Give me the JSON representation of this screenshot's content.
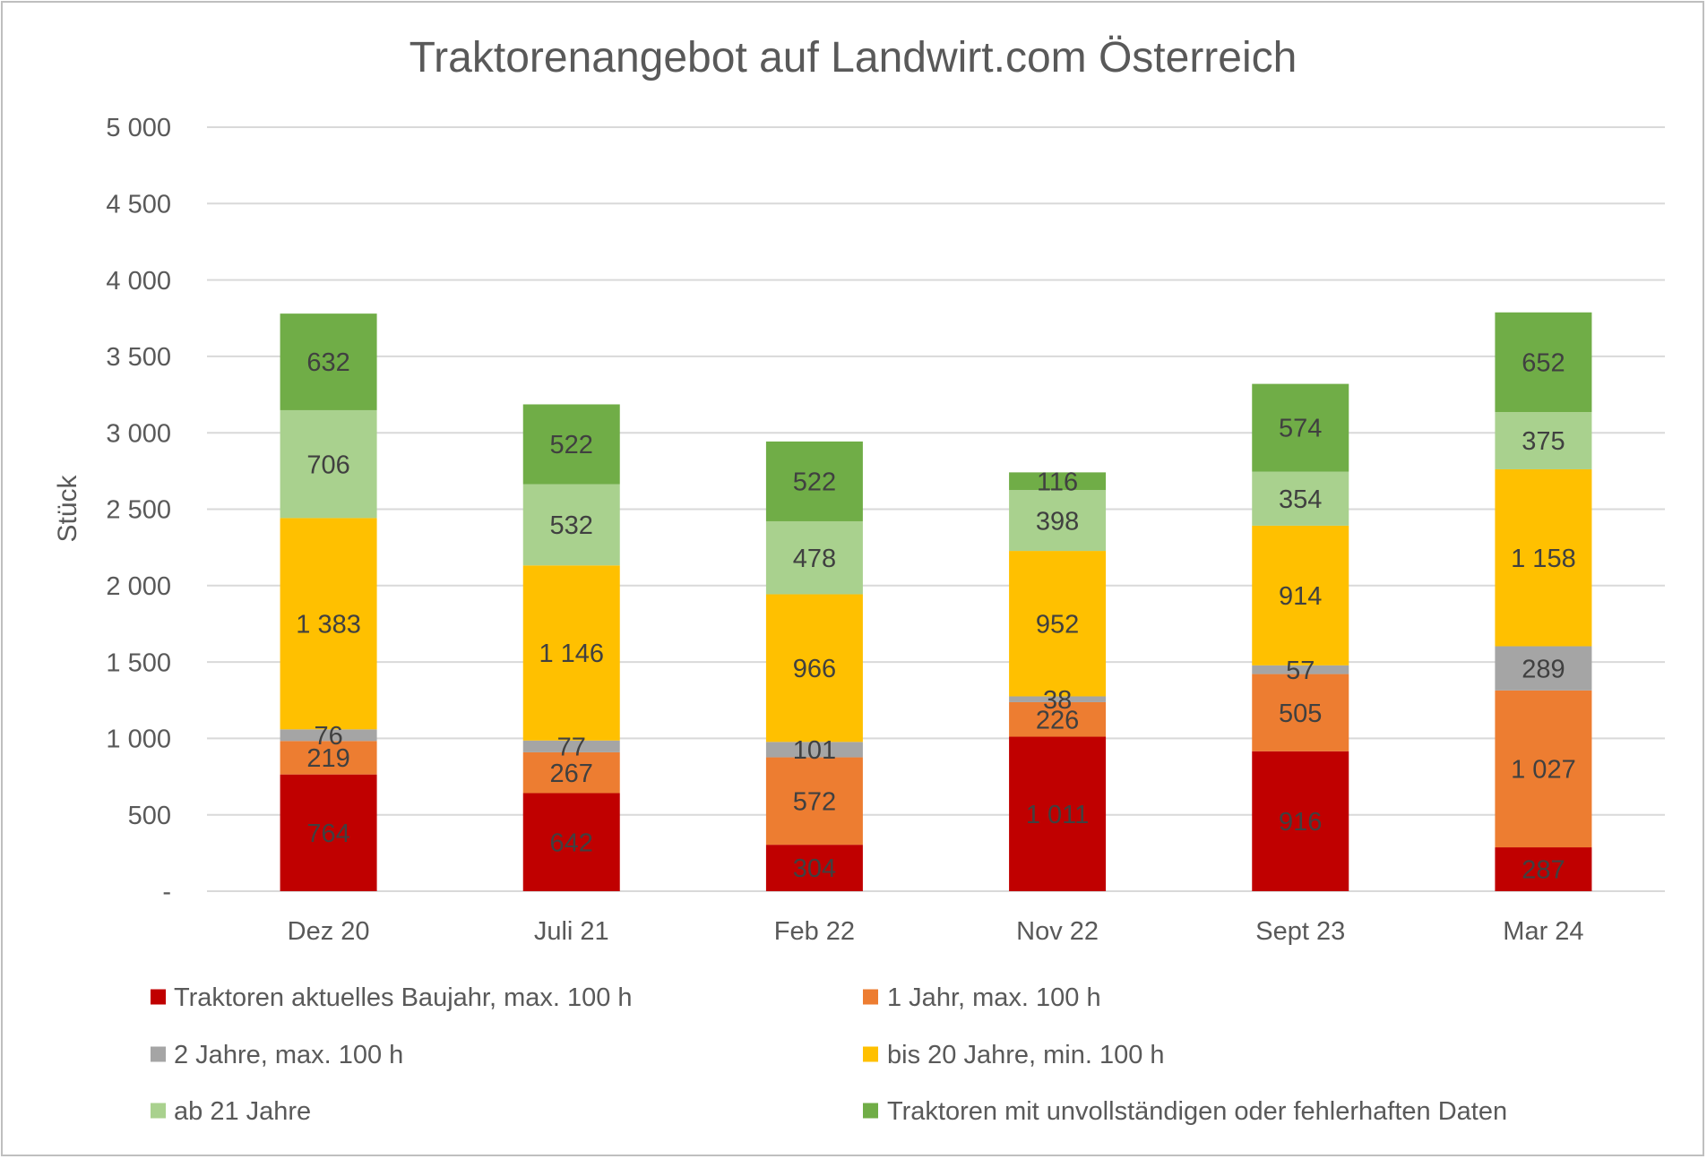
{
  "chart_data": {
    "type": "bar",
    "stacked": true,
    "title": "Traktorenangebot auf Landwirt.com Österreich",
    "xlabel": "",
    "ylabel": "Stück",
    "ylim": [
      0,
      5000
    ],
    "yticks": [
      0,
      500,
      1000,
      1500,
      2000,
      2500,
      3000,
      3500,
      4000,
      4500,
      5000
    ],
    "ytick_labels": [
      "-",
      "500",
      "1 000",
      "1 500",
      "2 000",
      "2 500",
      "3 000",
      "3 500",
      "4 000",
      "4 500",
      "5 000"
    ],
    "grid": true,
    "legend": "bottom",
    "data_labels": true,
    "categories": [
      "Dez 20",
      "Juli 21",
      "Feb 22",
      "Nov 22",
      "Sept 23",
      "Mar 24"
    ],
    "series": [
      {
        "name": "Traktoren aktuelles Baujahr, max. 100 h",
        "color": "#C00000",
        "values": [
          764,
          642,
          304,
          1011,
          916,
          287
        ]
      },
      {
        "name": "1 Jahr, max. 100 h",
        "color": "#ED7D31",
        "values": [
          219,
          267,
          572,
          226,
          505,
          1027
        ]
      },
      {
        "name": "2 Jahre, max. 100 h",
        "color": "#A5A5A5",
        "values": [
          76,
          77,
          101,
          38,
          57,
          289
        ]
      },
      {
        "name": "bis 20 Jahre, min. 100 h",
        "color": "#FFC000",
        "values": [
          1383,
          1146,
          966,
          952,
          914,
          1158
        ]
      },
      {
        "name": "ab 21 Jahre",
        "color": "#A9D18E",
        "values": [
          706,
          532,
          478,
          398,
          354,
          375
        ]
      },
      {
        "name": "Traktoren mit unvollständigen oder fehlerhaften Daten",
        "color": "#70AD47",
        "values": [
          632,
          522,
          522,
          116,
          574,
          652
        ]
      }
    ]
  }
}
